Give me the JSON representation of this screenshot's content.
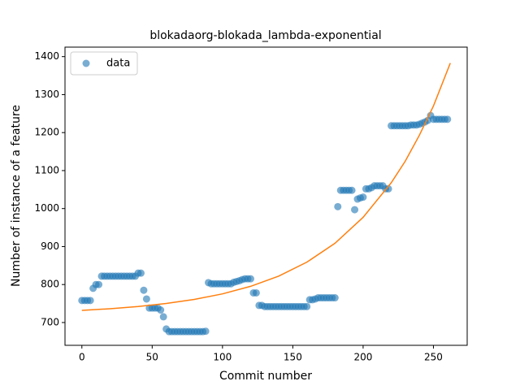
{
  "chart_data": {
    "type": "scatter",
    "title": "blokadaorg-blokada_lambda-exponential",
    "xlabel": "Commit number",
    "ylabel": "Number of instance of a feature",
    "xlim": [
      -12,
      274
    ],
    "ylim": [
      640,
      1425
    ],
    "xticks": [
      0,
      50,
      100,
      150,
      200,
      250
    ],
    "yticks": [
      700,
      800,
      900,
      1000,
      1100,
      1200,
      1300,
      1400
    ],
    "legend": "upper left",
    "series": [
      {
        "name": "data",
        "type": "scatter",
        "color": "#1f77b4",
        "x": [
          0,
          2,
          4,
          6,
          8,
          10,
          12,
          14,
          16,
          18,
          20,
          22,
          24,
          26,
          28,
          30,
          32,
          34,
          36,
          38,
          40,
          42,
          44,
          46,
          48,
          50,
          52,
          54,
          56,
          58,
          60,
          62,
          64,
          66,
          68,
          70,
          72,
          74,
          76,
          78,
          80,
          82,
          84,
          86,
          88,
          90,
          92,
          94,
          96,
          98,
          100,
          102,
          104,
          106,
          108,
          110,
          112,
          114,
          116,
          118,
          120,
          122,
          124,
          126,
          128,
          130,
          132,
          134,
          136,
          138,
          140,
          142,
          144,
          146,
          148,
          150,
          152,
          154,
          156,
          158,
          160,
          162,
          164,
          166,
          168,
          170,
          172,
          174,
          176,
          178,
          180,
          182,
          184,
          186,
          188,
          190,
          192,
          194,
          196,
          198,
          200,
          202,
          204,
          206,
          208,
          210,
          212,
          214,
          216,
          218,
          220,
          222,
          224,
          226,
          228,
          230,
          232,
          234,
          236,
          238,
          240,
          242,
          244,
          246,
          248,
          250,
          252,
          254,
          256,
          258,
          260
        ],
        "values": [
          758,
          758,
          758,
          758,
          790,
          800,
          800,
          822,
          822,
          822,
          822,
          822,
          822,
          822,
          822,
          822,
          822,
          822,
          822,
          822,
          830,
          830,
          785,
          762,
          738,
          738,
          738,
          738,
          733,
          715,
          683,
          676,
          676,
          676,
          676,
          676,
          676,
          676,
          676,
          676,
          676,
          676,
          676,
          676,
          677,
          805,
          802,
          802,
          802,
          802,
          802,
          802,
          802,
          802,
          806,
          808,
          810,
          813,
          815,
          815,
          815,
          778,
          778,
          745,
          745,
          742,
          742,
          742,
          742,
          742,
          742,
          742,
          742,
          742,
          742,
          742,
          742,
          742,
          742,
          742,
          742,
          760,
          760,
          762,
          765,
          765,
          765,
          765,
          765,
          765,
          765,
          1005,
          1048,
          1048,
          1048,
          1048,
          1048,
          997,
          1025,
          1028,
          1030,
          1052,
          1052,
          1055,
          1060,
          1060,
          1060,
          1060,
          1052,
          1052,
          1218,
          1218,
          1218,
          1218,
          1218,
          1218,
          1218,
          1220,
          1220,
          1220,
          1222,
          1225,
          1228,
          1232,
          1245,
          1235,
          1235,
          1235,
          1235,
          1235,
          1235
        ]
      },
      {
        "type": "line",
        "color": "#ff7f0e",
        "x": [
          0,
          20,
          40,
          60,
          80,
          100,
          120,
          140,
          160,
          180,
          200,
          220,
          230,
          240,
          250,
          262
        ],
        "values": [
          732,
          736.3,
          742.1,
          750.1,
          760.8,
          775.4,
          795.3,
          822.2,
          858.9,
          908.6,
          977,
          1068,
          1125,
          1193,
          1270,
          1383
        ]
      }
    ]
  }
}
